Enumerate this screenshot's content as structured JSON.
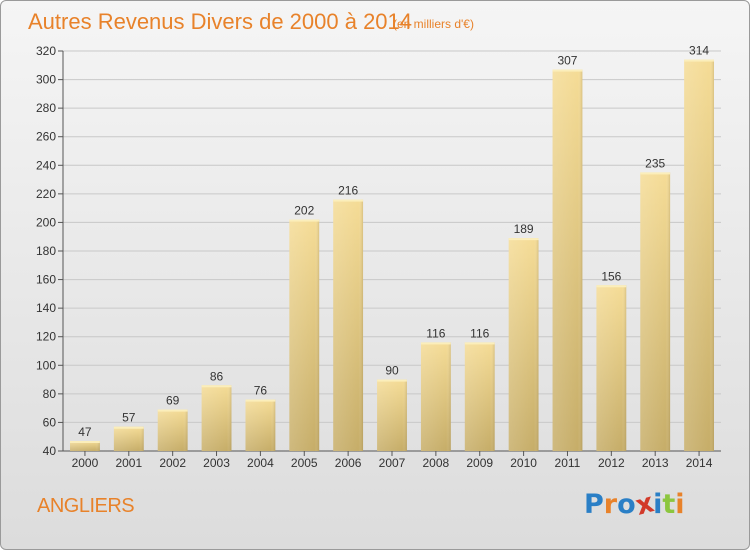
{
  "header": {
    "title": "Autres Revenus Divers de 2000 à 2014",
    "subtitle": "(en milliers d'€)"
  },
  "footer": {
    "city": "ANGLIERS",
    "logo": "Proxiti",
    "logo_letters": [
      {
        "ch": "P",
        "color": "#2a7fc6"
      },
      {
        "ch": "r",
        "color": "#e8822a"
      },
      {
        "ch": "o",
        "color": "#2a7fc6"
      },
      {
        "ch": "x",
        "color": "#d23a2a"
      },
      {
        "ch": "i",
        "color": "#2a7fc6"
      },
      {
        "ch": "t",
        "color": "#8cc63f"
      },
      {
        "ch": "i",
        "color": "#e8822a"
      }
    ]
  },
  "colors": {
    "accent": "#e8822a",
    "bar_light": "#f5dc96",
    "bar_dark": "#c6ad68",
    "grid": "#c8c8c8",
    "text": "#333333"
  },
  "chart_data": {
    "type": "bar",
    "title": "Autres Revenus Divers de 2000 à 2014",
    "subtitle": "(en milliers d'€)",
    "categories": [
      "2000",
      "2001",
      "2002",
      "2003",
      "2004",
      "2005",
      "2006",
      "2007",
      "2008",
      "2009",
      "2010",
      "2011",
      "2012",
      "2013",
      "2014"
    ],
    "values": [
      47,
      57,
      69,
      86,
      76,
      202,
      216,
      90,
      116,
      116,
      189,
      307,
      156,
      235,
      314
    ],
    "ylim": [
      40,
      320
    ],
    "yticks": [
      40,
      60,
      80,
      100,
      120,
      140,
      160,
      180,
      200,
      220,
      240,
      260,
      280,
      300,
      320
    ],
    "grid": true,
    "data_labels": true
  }
}
